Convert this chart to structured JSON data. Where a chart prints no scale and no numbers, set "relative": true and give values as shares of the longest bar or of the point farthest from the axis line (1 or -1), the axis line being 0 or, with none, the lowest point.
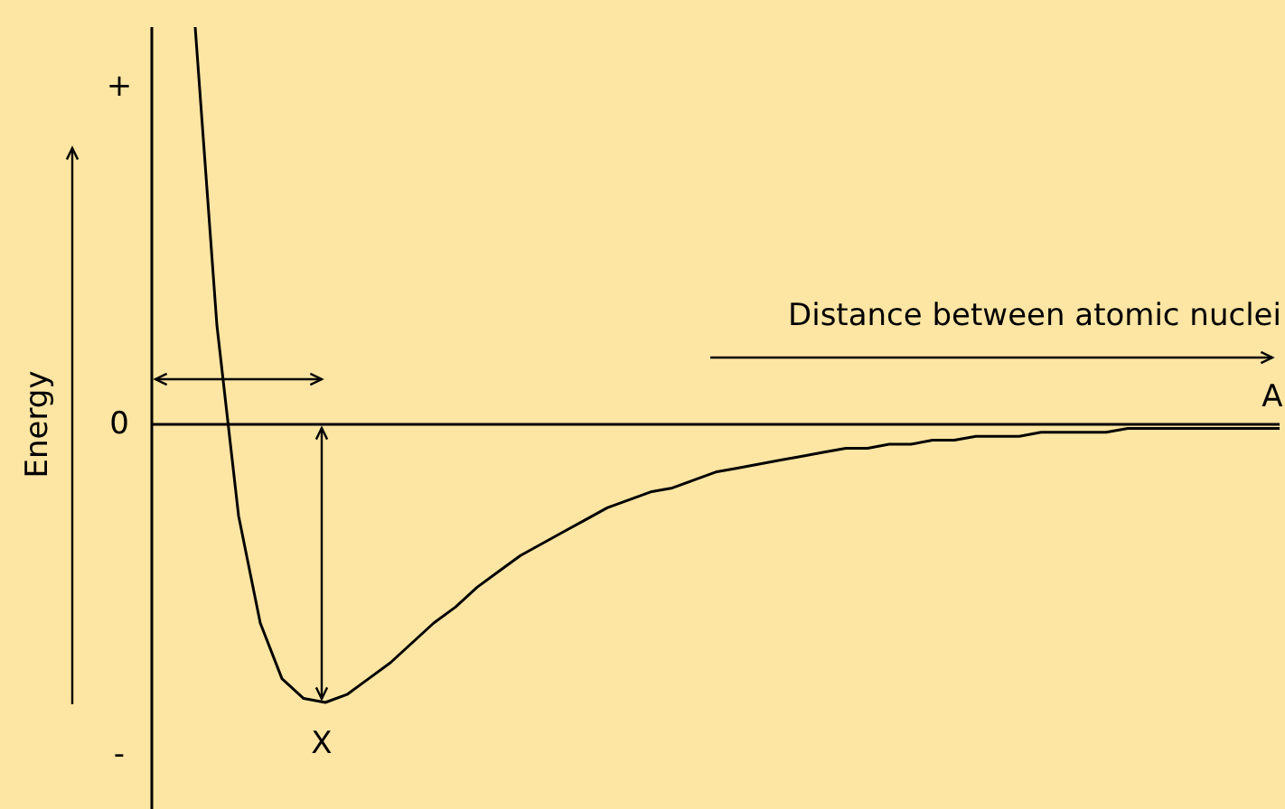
{
  "chart_data": {
    "type": "line",
    "relative": true,
    "xlabel": "Distance between atomic nuclei",
    "ylabel": "Energy",
    "categories": [
      null,
      null,
      null,
      null,
      null,
      null,
      null,
      null,
      null,
      null,
      null,
      null,
      null,
      null,
      null,
      null,
      null,
      null,
      null,
      null,
      null,
      null,
      null,
      null,
      null,
      null,
      null,
      null,
      null,
      null,
      null,
      null,
      null,
      null,
      null,
      null,
      null,
      null,
      null,
      null,
      null,
      null,
      null,
      null,
      null,
      null,
      null,
      null,
      null,
      null,
      null
    ],
    "series": [
      {
        "color": "#000000",
        "values": [
          1.0,
          0.25,
          -0.23,
          -0.5,
          -0.64,
          -0.69,
          -0.7,
          -0.68,
          -0.64,
          -0.6,
          -0.55,
          -0.5,
          -0.46,
          -0.41,
          -0.37,
          -0.33,
          -0.3,
          -0.27,
          -0.24,
          -0.21,
          -0.19,
          -0.17,
          -0.16,
          -0.14,
          -0.12,
          -0.11,
          -0.1,
          -0.09,
          -0.08,
          -0.07,
          -0.06,
          -0.06,
          -0.05,
          -0.05,
          -0.04,
          -0.04,
          -0.03,
          -0.03,
          -0.03,
          -0.02,
          -0.02,
          -0.02,
          -0.02,
          -0.01,
          -0.01,
          -0.01,
          -0.01,
          -0.01,
          -0.01,
          -0.01,
          -0.01
        ]
      }
    ],
    "annotations": [
      "+",
      "0",
      "-",
      {
        "text": "X",
        "y": -0.7
      },
      "A"
    ],
    "line_style": "solid"
  }
}
